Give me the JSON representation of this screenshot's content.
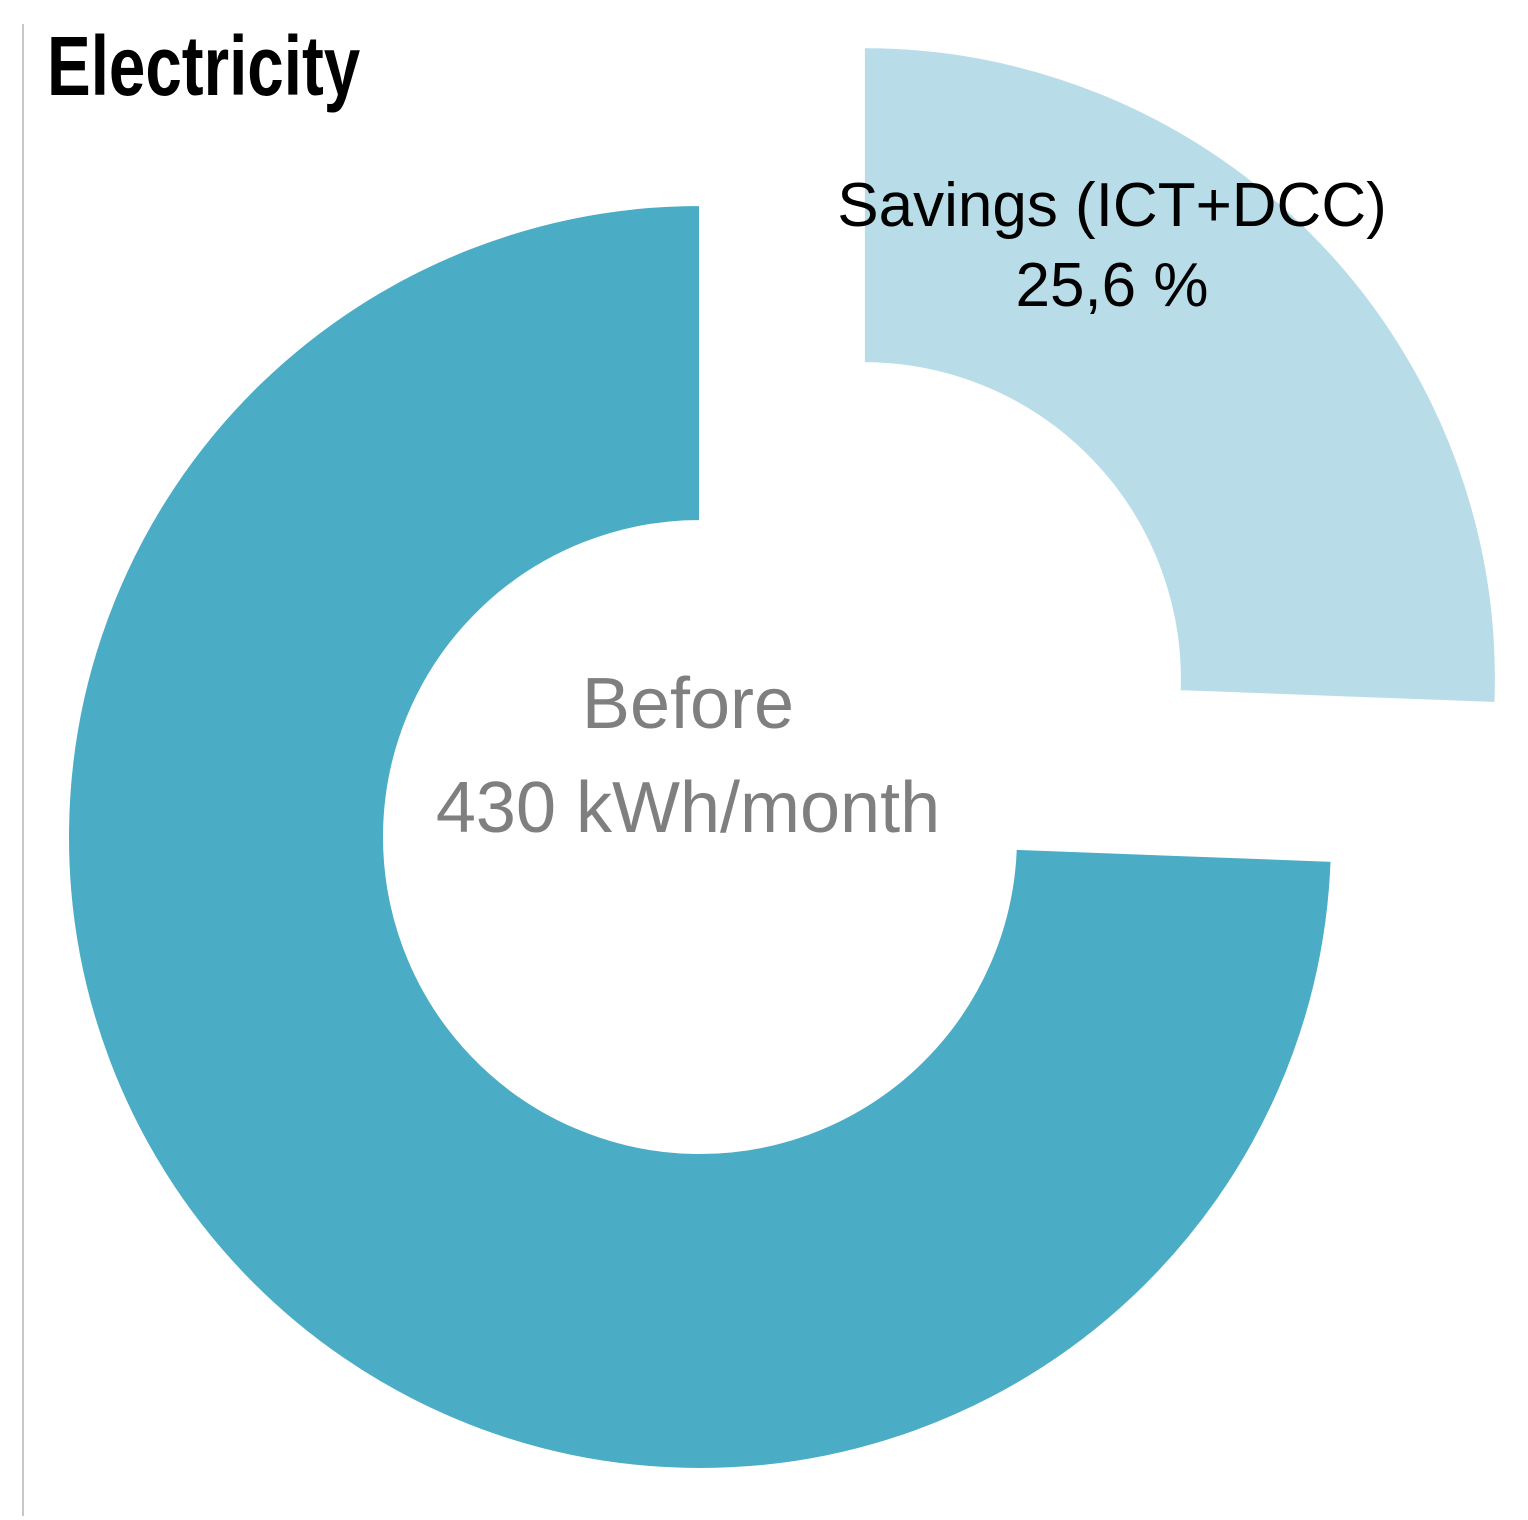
{
  "title": "Electricity",
  "colors": {
    "before_slice": "#4AACC5",
    "savings_slice": "#B8DDE8",
    "center_text": "#7F7F7F",
    "savings_text": "#000000",
    "left_rule": "#C8C8C8",
    "background": "#FFFFFF"
  },
  "chart_data": {
    "type": "pie",
    "title": "Electricity",
    "donut": true,
    "donut_hole_ratio": 0.5,
    "start_angle_deg": 0,
    "direction": "clockwise",
    "explode_ratio": 0.36,
    "legend_position": "none",
    "slices": [
      {
        "name": "Savings (ICT+DCC)",
        "percent": 25.6,
        "percent_text": "25,6 %",
        "color": "#B8DDE8",
        "exploded": true,
        "slug": "savings"
      },
      {
        "name": "Before",
        "percent": 74.4,
        "value_text": "430 kWh/month",
        "color": "#4AACC5",
        "exploded": false,
        "slug": "before"
      }
    ]
  }
}
